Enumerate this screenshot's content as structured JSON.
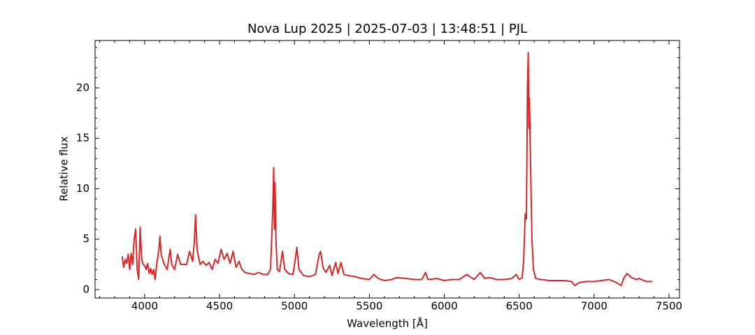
{
  "chart_data": {
    "type": "line",
    "title": "Nova Lup 2025 | 2025-07-03 | 13:48:51 | PJL",
    "x_label": "Wavelength [Å]",
    "y_label": "Relative flux",
    "xlim": [
      3669,
      7570
    ],
    "ylim": [
      -0.83,
      24.7
    ],
    "xticks": [
      4000,
      4500,
      5000,
      5500,
      6000,
      6500,
      7000,
      7500
    ],
    "yticks": [
      0,
      5,
      10,
      15,
      20
    ],
    "xminorticks": [
      3700,
      3800,
      3900,
      4100,
      4200,
      4300,
      4400,
      4600,
      4700,
      4800,
      4900,
      5100,
      5200,
      5300,
      5400,
      5600,
      5700,
      5800,
      5900,
      6100,
      6200,
      6300,
      6400,
      6600,
      6700,
      6800,
      6900,
      7100,
      7200,
      7300,
      7400
    ],
    "yminorticks": [
      1,
      2,
      3,
      4,
      6,
      7,
      8,
      9,
      11,
      12,
      13,
      14,
      16,
      17,
      18,
      19,
      21,
      22,
      23,
      24
    ],
    "series": [
      {
        "color": "#d62728",
        "x": [
          3850,
          3860,
          3870,
          3880,
          3890,
          3900,
          3910,
          3920,
          3930,
          3940,
          3950,
          3960,
          3970,
          3980,
          3990,
          4000,
          4010,
          4020,
          4030,
          4040,
          4050,
          4060,
          4070,
          4080,
          4095,
          4102,
          4110,
          4130,
          4150,
          4170,
          4180,
          4200,
          4220,
          4240,
          4260,
          4280,
          4300,
          4320,
          4330,
          4340,
          4350,
          4370,
          4390,
          4410,
          4430,
          4450,
          4470,
          4490,
          4510,
          4530,
          4550,
          4570,
          4590,
          4610,
          4630,
          4650,
          4670,
          4700,
          4730,
          4760,
          4790,
          4820,
          4840,
          4855,
          4861,
          4866,
          4870,
          4876,
          4885,
          4900,
          4920,
          4935,
          4960,
          4990,
          5010,
          5015,
          5030,
          5060,
          5100,
          5140,
          5165,
          5175,
          5190,
          5210,
          5235,
          5250,
          5275,
          5290,
          5310,
          5330,
          5360,
          5400,
          5450,
          5500,
          5530,
          5560,
          5600,
          5650,
          5680,
          5750,
          5800,
          5850,
          5875,
          5890,
          5950,
          6000,
          6050,
          6100,
          6150,
          6200,
          6240,
          6270,
          6300,
          6350,
          6400,
          6450,
          6480,
          6500,
          6520,
          6530,
          6540,
          6548,
          6555,
          6560,
          6565,
          6568,
          6575,
          6585,
          6595,
          6610,
          6650,
          6700,
          6750,
          6800,
          6850,
          6870,
          6900,
          6950,
          7000,
          7050,
          7100,
          7150,
          7180,
          7200,
          7220,
          7250,
          7280,
          7300,
          7350,
          7390
        ],
        "values": [
          3.3,
          2.2,
          3.0,
          2.6,
          3.5,
          2.0,
          3.6,
          2.5,
          5.0,
          6.0,
          2.0,
          1.0,
          6.2,
          3.0,
          2.5,
          2.4,
          2.0,
          2.6,
          1.6,
          2.1,
          1.5,
          2.0,
          1.0,
          2.5,
          4.0,
          5.3,
          3.5,
          2.5,
          2.0,
          4.0,
          2.5,
          2.0,
          3.5,
          2.5,
          2.5,
          2.5,
          3.8,
          2.8,
          4.5,
          7.4,
          4.0,
          2.5,
          2.8,
          2.4,
          2.7,
          2.0,
          3.0,
          2.6,
          4.0,
          3.0,
          3.6,
          2.6,
          3.8,
          2.2,
          2.8,
          2.0,
          1.7,
          1.6,
          1.5,
          1.7,
          1.5,
          1.5,
          2.0,
          8.0,
          12.1,
          6.0,
          10.6,
          5.0,
          2.0,
          1.8,
          3.8,
          2.0,
          1.6,
          1.5,
          3.5,
          4.2,
          2.0,
          1.4,
          1.3,
          1.5,
          3.5,
          3.8,
          2.2,
          1.7,
          2.4,
          1.4,
          2.7,
          1.6,
          2.7,
          1.5,
          1.4,
          1.3,
          1.1,
          1.0,
          1.5,
          1.1,
          0.9,
          1.0,
          1.2,
          1.1,
          1.0,
          1.0,
          1.7,
          1.0,
          1.1,
          0.9,
          1.0,
          1.0,
          1.5,
          1.0,
          1.7,
          1.1,
          1.2,
          1.0,
          1.0,
          1.1,
          1.5,
          1.0,
          1.2,
          3.0,
          7.5,
          7.0,
          20.0,
          23.5,
          16.0,
          19.0,
          13.0,
          5.0,
          2.0,
          1.1,
          1.0,
          0.9,
          0.9,
          0.9,
          0.8,
          0.4,
          0.7,
          0.8,
          0.8,
          0.9,
          1.0,
          0.7,
          0.4,
          1.2,
          1.6,
          1.2,
          1.0,
          1.1,
          0.8,
          0.8
        ]
      }
    ]
  }
}
